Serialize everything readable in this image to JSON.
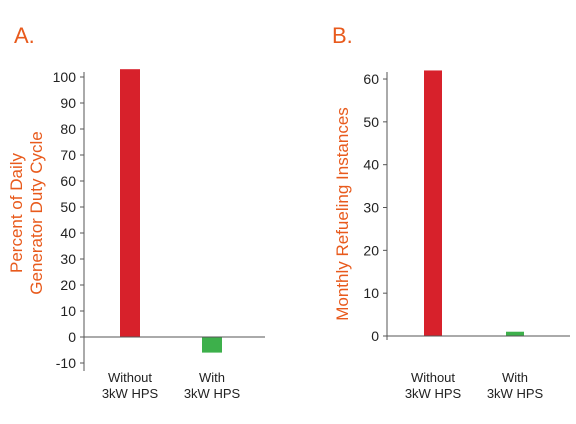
{
  "chart_data": [
    {
      "type": "bar",
      "panel": "A.",
      "ylabel_lines": [
        "Percent of Daily",
        "Generator Duty Cycle"
      ],
      "categories": [
        {
          "lines": [
            "Without",
            "3kW HPS"
          ]
        },
        {
          "lines": [
            "With",
            "3kW HPS"
          ]
        }
      ],
      "values": [
        103,
        -6
      ],
      "colors": [
        "#d7212b",
        "#3db04b"
      ],
      "ylim": [
        -10,
        100
      ],
      "yticks": [
        100,
        90,
        80,
        70,
        60,
        50,
        40,
        30,
        20,
        10,
        0,
        -10
      ]
    },
    {
      "type": "bar",
      "panel": "B.",
      "ylabel_lines": [
        "Monthly Refueling Instances"
      ],
      "categories": [
        {
          "lines": [
            "Without",
            "3kW HPS"
          ]
        },
        {
          "lines": [
            "With",
            "3kW HPS"
          ]
        }
      ],
      "values": [
        62,
        1
      ],
      "colors": [
        "#d7212b",
        "#3db04b"
      ],
      "ylim": [
        0,
        60
      ],
      "yticks": [
        60,
        50,
        40,
        30,
        20,
        10,
        0
      ]
    }
  ]
}
